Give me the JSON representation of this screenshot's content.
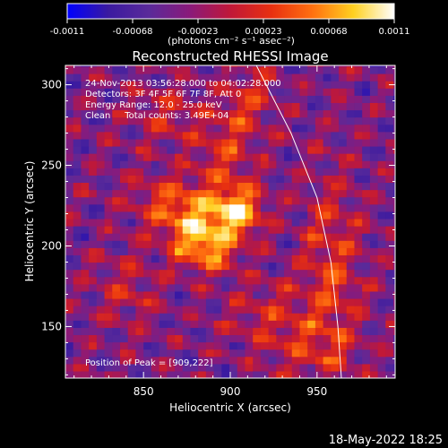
{
  "chart_data": {
    "type": "heatmap",
    "title": "Reconstructed RHESSI Image",
    "xlabel": "Heliocentric X (arcsec)",
    "ylabel": "Heliocentric Y (arcsec)",
    "xlim": [
      805,
      995
    ],
    "ylim": [
      118,
      312
    ],
    "xticks": [
      850,
      900,
      950
    ],
    "yticks": [
      150,
      200,
      250,
      300
    ],
    "colorbar": {
      "min": -0.0011,
      "max": 0.0011,
      "tick_labels": [
        "-0.0011",
        "-0.00068",
        "-0.00023",
        "0.00023",
        "0.00068",
        "0.0011"
      ],
      "units": "(photons cm⁻² s⁻¹ asec⁻²)",
      "palette": [
        "#0000ff",
        "#3a1aa0",
        "#5a2a9a",
        "#8a1a7a",
        "#c01838",
        "#e83010",
        "#ff7010",
        "#ffd020",
        "#ffffff"
      ]
    },
    "annotations": [
      "24-Nov-2013 03:56:28.000 to 04:02:28.000",
      "Detectors: 3F 4F 5F 6F 7F 8F, Att 0",
      "Energy Range: 12.0 - 25.0 keV",
      "Clean     Total counts: 3.49E+04"
    ],
    "peak_label": "Position of Peak = [909,222]",
    "peak": [
      909,
      222
    ],
    "sources": [
      {
        "x": 905,
        "y": 222,
        "sx": 10,
        "sy": 10,
        "amp": 0.00105
      },
      {
        "x": 880,
        "y": 212,
        "sx": 15,
        "sy": 13,
        "amp": 0.00088
      },
      {
        "x": 888,
        "y": 197,
        "sx": 12,
        "sy": 9,
        "amp": 0.0007
      },
      {
        "x": 866,
        "y": 230,
        "sx": 17,
        "sy": 11,
        "amp": 0.0005
      },
      {
        "x": 898,
        "y": 258,
        "sx": 11,
        "sy": 22,
        "amp": 0.0005
      },
      {
        "x": 862,
        "y": 280,
        "sx": 15,
        "sy": 13,
        "amp": 0.0004
      },
      {
        "x": 958,
        "y": 186,
        "sx": 12,
        "sy": 42,
        "amp": 0.00055
      },
      {
        "x": 840,
        "y": 172,
        "sx": 13,
        "sy": 17,
        "amp": 0.00035
      },
      {
        "x": 922,
        "y": 158,
        "sx": 18,
        "sy": 14,
        "amp": 0.0004
      },
      {
        "x": 912,
        "y": 292,
        "sx": 10,
        "sy": 14,
        "amp": 0.00045
      },
      {
        "x": 945,
        "y": 135,
        "sx": 18,
        "sy": 12,
        "amp": 0.00035
      }
    ],
    "background_level": -0.00036,
    "limb_curve": [
      [
        915,
        312
      ],
      [
        935,
        270
      ],
      [
        950,
        230
      ],
      [
        958,
        190
      ],
      [
        962,
        150
      ],
      [
        964,
        118
      ]
    ]
  },
  "footer": {
    "date": "18-May-2022 18:25"
  }
}
